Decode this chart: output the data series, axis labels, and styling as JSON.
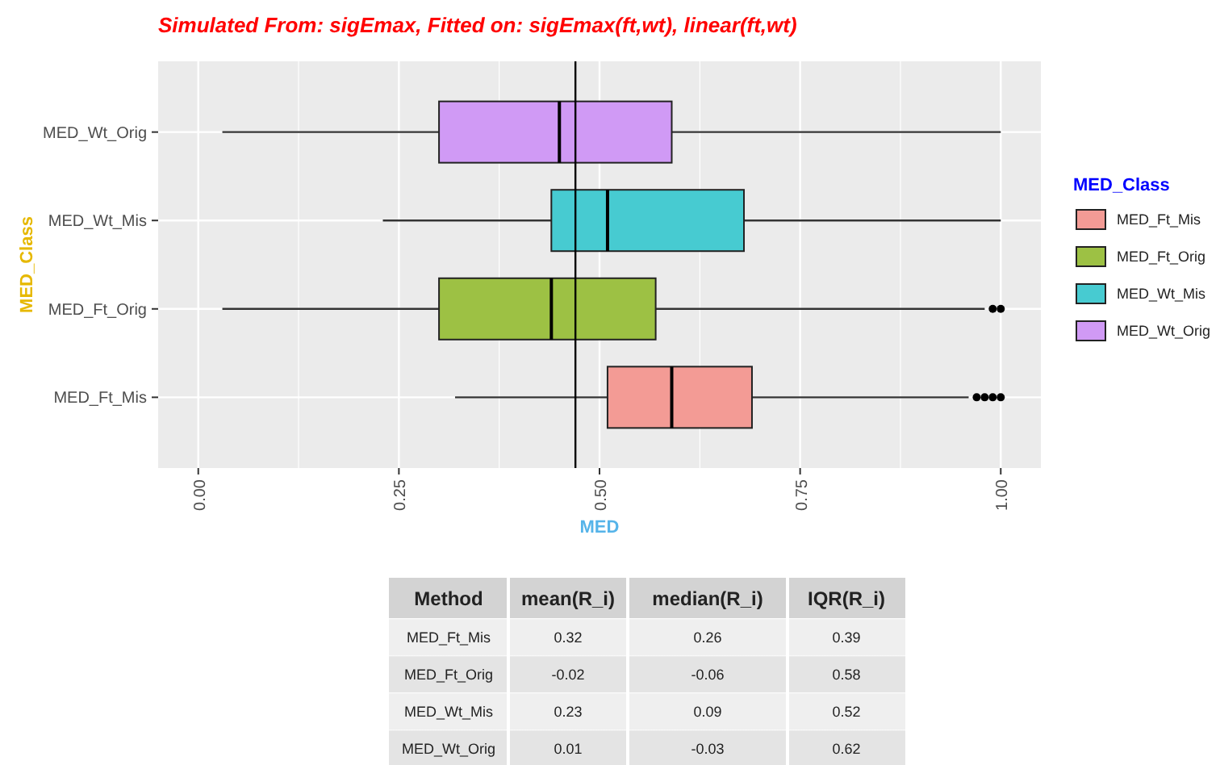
{
  "chart_data": [
    {
      "type": "box",
      "orientation": "horizontal",
      "title": "Simulated From: sigEmax, Fitted on: sigEmax(ft,wt), linear(ft,wt)",
      "xlabel": "MED",
      "ylabel": "MED_Class",
      "legend_title": "MED_Class",
      "categories": [
        "MED_Wt_Orig",
        "MED_Wt_Mis",
        "MED_Ft_Orig",
        "MED_Ft_Mis"
      ],
      "series": [
        {
          "name": "MED_Ft_Mis",
          "color": "#f39b95",
          "boxes": [
            null,
            null,
            null,
            {
              "low": 0.32,
              "q1": 0.51,
              "median": 0.59,
              "q3": 0.69,
              "high": 0.96,
              "outliers": [
                0.97,
                0.98,
                0.99,
                1.0
              ]
            }
          ]
        },
        {
          "name": "MED_Ft_Orig",
          "color": "#9dc144",
          "boxes": [
            null,
            null,
            {
              "low": 0.03,
              "q1": 0.3,
              "median": 0.44,
              "q3": 0.57,
              "high": 0.98,
              "outliers": [
                0.99,
                1.0
              ]
            },
            null
          ]
        },
        {
          "name": "MED_Wt_Mis",
          "color": "#47cbd1",
          "boxes": [
            null,
            {
              "low": 0.23,
              "q1": 0.44,
              "median": 0.51,
              "q3": 0.68,
              "high": 1.0
            },
            null,
            null
          ]
        },
        {
          "name": "MED_Wt_Orig",
          "color": "#d09af5",
          "boxes": [
            {
              "low": 0.03,
              "q1": 0.3,
              "median": 0.45,
              "q3": 0.59,
              "high": 1.0
            },
            null,
            null,
            null
          ]
        }
      ],
      "xlim": [
        -0.05,
        1.05
      ],
      "xticks": [
        {
          "value": 0,
          "label": "0.00"
        },
        {
          "value": 0.25,
          "label": "0.25"
        },
        {
          "value": 0.5,
          "label": "0.50"
        },
        {
          "value": 0.75,
          "label": "0.75"
        },
        {
          "value": 1,
          "label": "1.00"
        }
      ],
      "ref_lines": [
        {
          "axis": "x",
          "value": 0.47,
          "color": "#000000"
        }
      ],
      "grid": true,
      "legend": "right"
    },
    {
      "type": "other",
      "ylabel": "Method",
      "categories": [
        "MED_Ft_Mis",
        "MED_Ft_Orig",
        "MED_Wt_Mis",
        "MED_Wt_Orig"
      ],
      "series": [
        {
          "name": "mean(R_i)",
          "values": [
            0.32,
            -0.02,
            0.23,
            0.01
          ]
        },
        {
          "name": "median(R_i)",
          "values": [
            0.26,
            -0.06,
            0.09,
            -0.03
          ]
        },
        {
          "name": "IQR(R_i)",
          "values": [
            0.39,
            0.58,
            0.52,
            0.62
          ]
        }
      ],
      "data_labels": true
    }
  ]
}
